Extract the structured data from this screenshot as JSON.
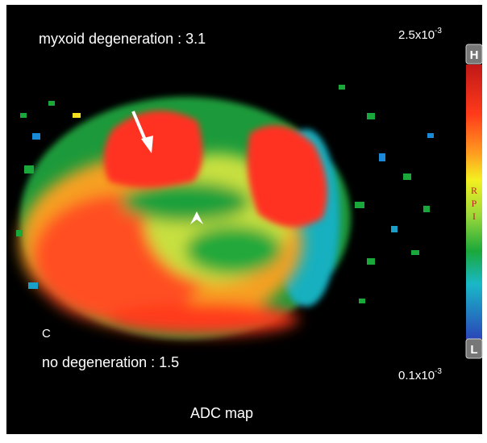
{
  "annotations": {
    "top_label": "myxoid degeneration : 3.1",
    "bottom_label": "no degeneration : 1.5",
    "panel_letter": "C",
    "caption": "ADC map"
  },
  "color_scale": {
    "max": {
      "base": "2.5x10",
      "exponent": "-3"
    },
    "min": {
      "base": "0.1x10",
      "exponent": "-3"
    },
    "high_key": "H",
    "low_key": "L",
    "side_letters": [
      "R",
      "P",
      "I"
    ]
  }
}
